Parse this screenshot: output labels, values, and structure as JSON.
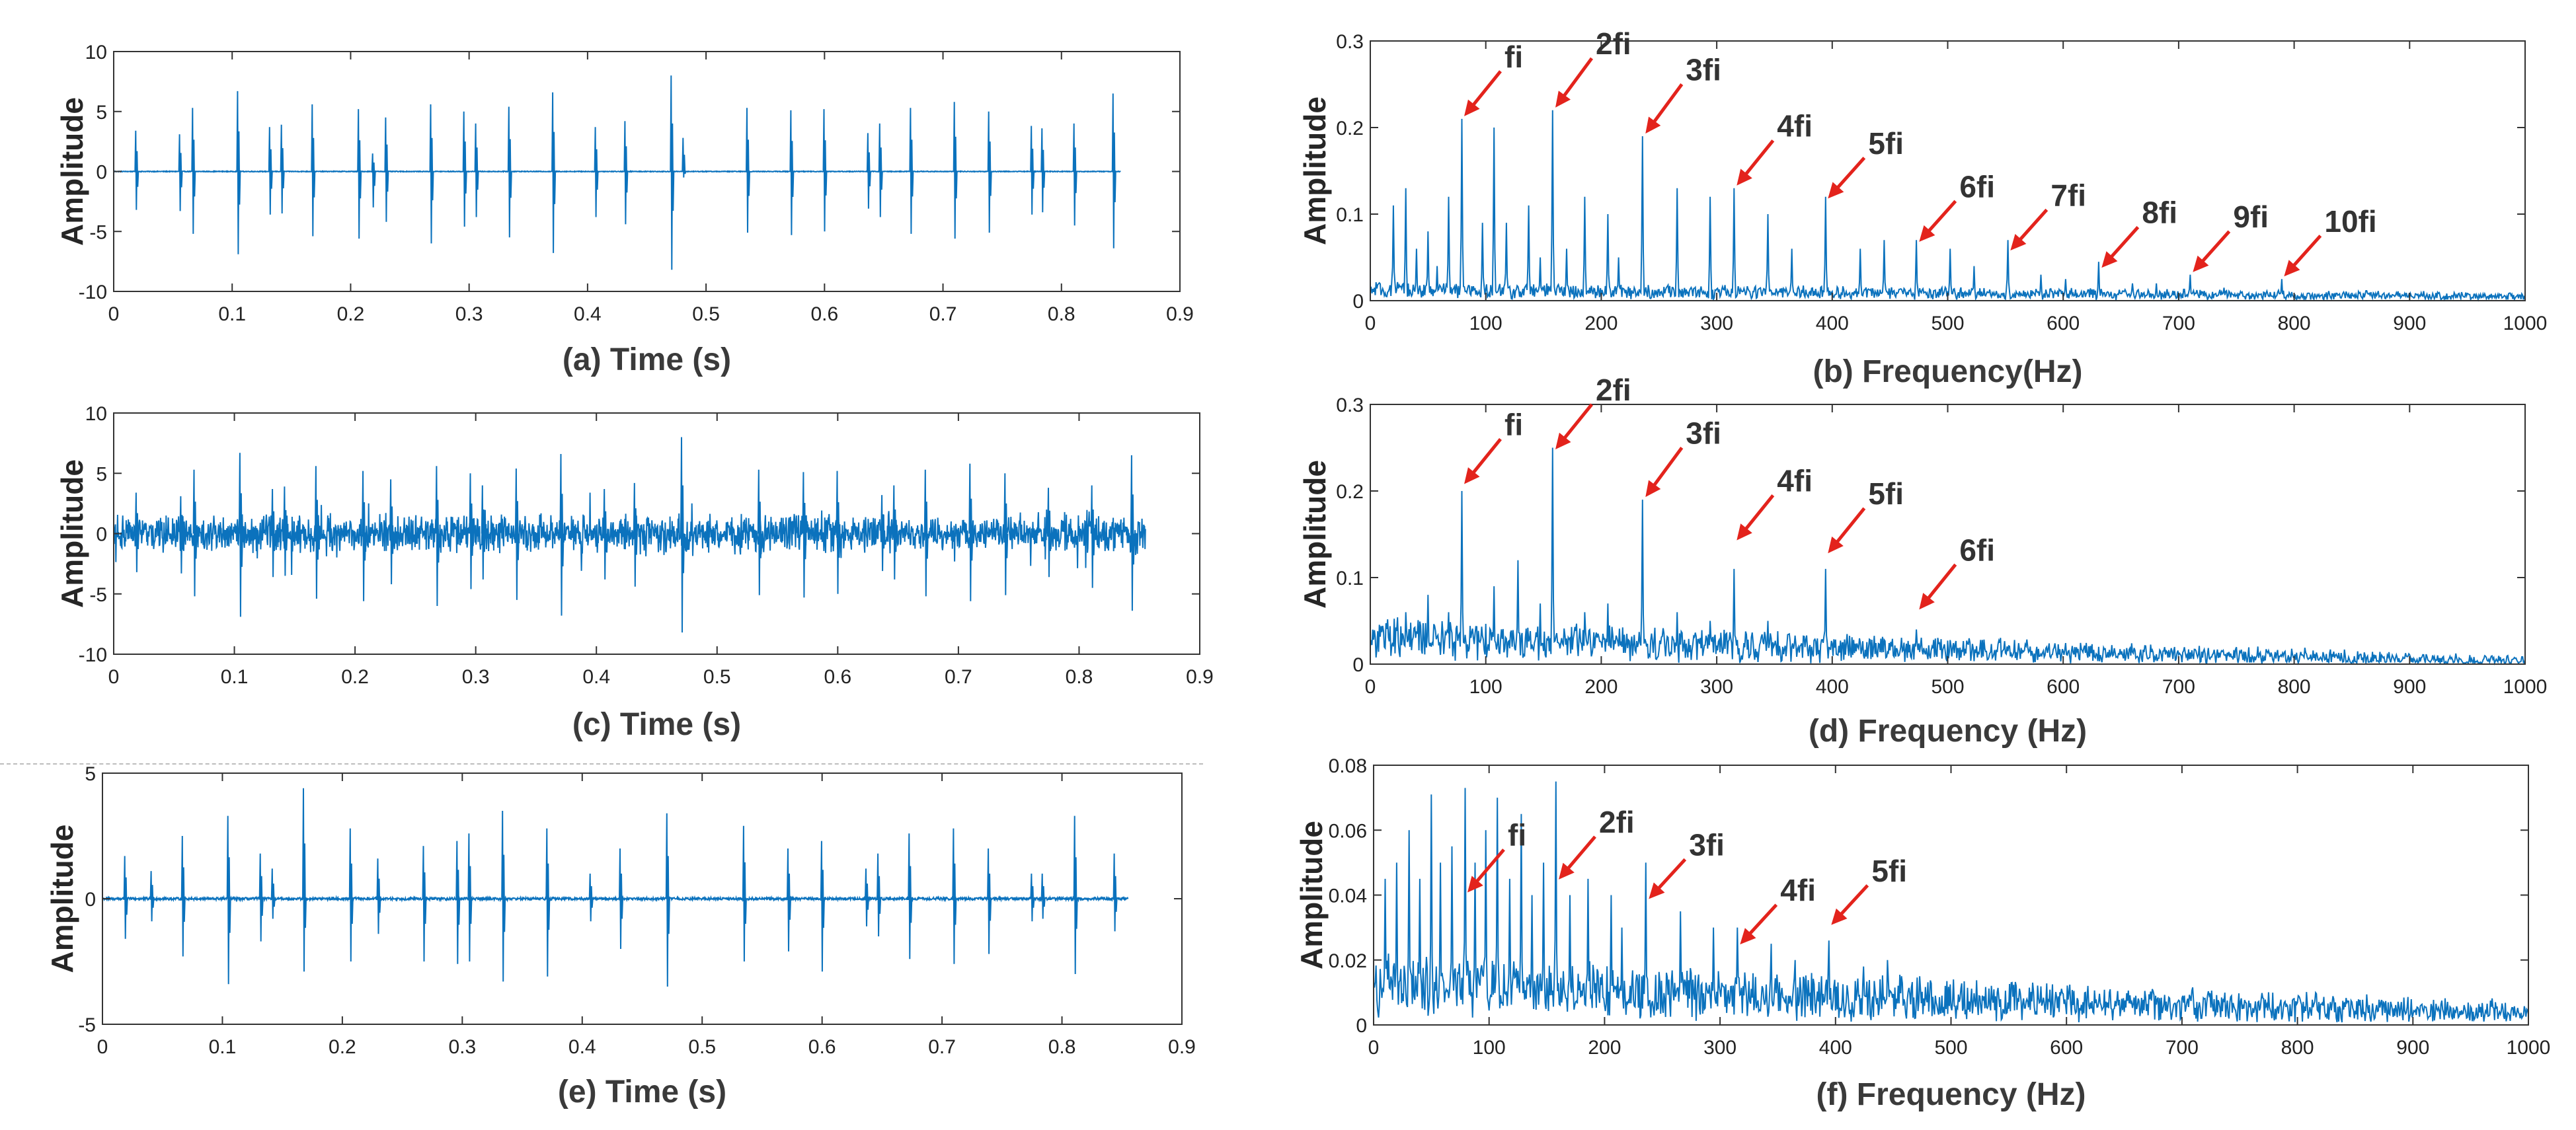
{
  "chart_data": [
    {
      "id": "a",
      "type": "line",
      "kind": "time",
      "xlabel": "(a) Time (s)",
      "ylabel": "Amplitude",
      "xlim": [
        0,
        0.9
      ],
      "ylim": [
        -10,
        10
      ],
      "xticks": [
        "0",
        "0.1",
        "0.2",
        "0.3",
        "0.4",
        "0.5",
        "0.6",
        "0.7",
        "0.8",
        "0.9"
      ],
      "yticks": [
        "10",
        "5",
        "0",
        "-5",
        "-10"
      ],
      "ytick_values": [
        10,
        5,
        0,
        -5,
        -10
      ],
      "signal_end": 0.85,
      "noise": 0.03,
      "impulses": [
        {
          "t": 0.018,
          "up": 3.4,
          "down": -3.2
        },
        {
          "t": 0.055,
          "up": 3.1,
          "down": -3.3
        },
        {
          "t": 0.066,
          "up": 5.3,
          "down": -5.2
        },
        {
          "t": 0.104,
          "up": 6.7,
          "down": -6.9
        },
        {
          "t": 0.131,
          "up": 3.7,
          "down": -3.6
        },
        {
          "t": 0.141,
          "up": 3.9,
          "down": -3.5
        },
        {
          "t": 0.167,
          "up": 5.6,
          "down": -5.4
        },
        {
          "t": 0.206,
          "up": 5.2,
          "down": -5.6
        },
        {
          "t": 0.218,
          "up": 1.5,
          "down": -3.0
        },
        {
          "t": 0.229,
          "up": 4.5,
          "down": -4.2
        },
        {
          "t": 0.267,
          "up": 5.6,
          "down": -6.0
        },
        {
          "t": 0.295,
          "up": 5.0,
          "down": -4.6
        },
        {
          "t": 0.305,
          "up": 4.0,
          "down": -3.8
        },
        {
          "t": 0.333,
          "up": 5.4,
          "down": -5.5
        },
        {
          "t": 0.37,
          "up": 6.6,
          "down": -6.8
        },
        {
          "t": 0.406,
          "up": 3.7,
          "down": -3.8
        },
        {
          "t": 0.431,
          "up": 4.2,
          "down": -4.4
        },
        {
          "t": 0.47,
          "up": 8.0,
          "down": -8.2
        },
        {
          "t": 0.48,
          "up": 2.8,
          "down": -0.5
        },
        {
          "t": 0.534,
          "up": 5.3,
          "down": -5.1
        },
        {
          "t": 0.571,
          "up": 5.1,
          "down": -5.3
        },
        {
          "t": 0.599,
          "up": 5.2,
          "down": -5.0
        },
        {
          "t": 0.636,
          "up": 3.2,
          "down": -3.1
        },
        {
          "t": 0.646,
          "up": 4.0,
          "down": -3.8
        },
        {
          "t": 0.672,
          "up": 5.3,
          "down": -5.2
        },
        {
          "t": 0.709,
          "up": 5.8,
          "down": -5.6
        },
        {
          "t": 0.738,
          "up": 5.0,
          "down": -5.1
        },
        {
          "t": 0.774,
          "up": 3.8,
          "down": -3.6
        },
        {
          "t": 0.783,
          "up": 3.6,
          "down": -3.4
        },
        {
          "t": 0.81,
          "up": 4.0,
          "down": -4.5
        },
        {
          "t": 0.843,
          "up": 6.5,
          "down": -6.4
        }
      ]
    },
    {
      "id": "c",
      "type": "line",
      "kind": "time",
      "xlabel": "(c) Time (s)",
      "ylabel": "Amplitude",
      "xlim": [
        0,
        0.9
      ],
      "ylim": [
        -10,
        10
      ],
      "xticks": [
        "0",
        "0.1",
        "0.2",
        "0.3",
        "0.4",
        "0.5",
        "0.6",
        "0.7",
        "0.8",
        "0.9"
      ],
      "yticks": [
        "10",
        "5",
        "0",
        "-5",
        "-10"
      ],
      "ytick_values": [
        10,
        5,
        0,
        -5,
        -10
      ],
      "signal_end": 0.855,
      "noise": 1.1,
      "impulses": [
        {
          "t": 0.018,
          "up": 3.4,
          "down": -3.2
        },
        {
          "t": 0.055,
          "up": 3.1,
          "down": -3.3
        },
        {
          "t": 0.066,
          "up": 5.3,
          "down": -5.2
        },
        {
          "t": 0.104,
          "up": 6.7,
          "down": -6.9
        },
        {
          "t": 0.131,
          "up": 3.7,
          "down": -3.6
        },
        {
          "t": 0.141,
          "up": 3.9,
          "down": -3.5
        },
        {
          "t": 0.167,
          "up": 5.6,
          "down": -5.4
        },
        {
          "t": 0.206,
          "up": 5.2,
          "down": -5.6
        },
        {
          "t": 0.229,
          "up": 4.5,
          "down": -4.2
        },
        {
          "t": 0.267,
          "up": 5.6,
          "down": -6.0
        },
        {
          "t": 0.295,
          "up": 5.0,
          "down": -4.6
        },
        {
          "t": 0.305,
          "up": 4.0,
          "down": -3.8
        },
        {
          "t": 0.333,
          "up": 5.4,
          "down": -5.5
        },
        {
          "t": 0.37,
          "up": 6.6,
          "down": -6.8
        },
        {
          "t": 0.406,
          "up": 3.7,
          "down": -3.8
        },
        {
          "t": 0.431,
          "up": 4.2,
          "down": -4.4
        },
        {
          "t": 0.47,
          "up": 8.0,
          "down": -8.2
        },
        {
          "t": 0.534,
          "up": 5.3,
          "down": -5.1
        },
        {
          "t": 0.571,
          "up": 5.1,
          "down": -5.3
        },
        {
          "t": 0.599,
          "up": 5.2,
          "down": -5.0
        },
        {
          "t": 0.636,
          "up": 3.2,
          "down": -3.1
        },
        {
          "t": 0.646,
          "up": 4.0,
          "down": -3.8
        },
        {
          "t": 0.672,
          "up": 5.3,
          "down": -5.2
        },
        {
          "t": 0.709,
          "up": 5.8,
          "down": -5.6
        },
        {
          "t": 0.738,
          "up": 5.0,
          "down": -5.1
        },
        {
          "t": 0.774,
          "up": 3.8,
          "down": -3.6
        },
        {
          "t": 0.81,
          "up": 4.0,
          "down": -4.5
        },
        {
          "t": 0.843,
          "up": 6.5,
          "down": -6.4
        }
      ]
    },
    {
      "id": "e",
      "type": "line",
      "kind": "time",
      "xlabel": "(e) Time (s)",
      "ylabel": "Amplitude",
      "xlim": [
        0,
        0.9
      ],
      "ylim": [
        -5,
        5
      ],
      "xticks": [
        "0",
        "0.1",
        "0.2",
        "0.3",
        "0.4",
        "0.5",
        "0.6",
        "0.7",
        "0.8",
        "0.9"
      ],
      "yticks": [
        "5",
        "0",
        "-5"
      ],
      "ytick_values": [
        5,
        0,
        -5
      ],
      "signal_end": 0.855,
      "noise": 0.05,
      "impulses": [
        {
          "t": 0.018,
          "up": 1.7,
          "down": -1.6
        },
        {
          "t": 0.04,
          "up": 1.1,
          "down": -0.9
        },
        {
          "t": 0.066,
          "up": 2.5,
          "down": -2.3
        },
        {
          "t": 0.104,
          "up": 3.3,
          "down": -3.4
        },
        {
          "t": 0.131,
          "up": 1.8,
          "down": -1.7
        },
        {
          "t": 0.141,
          "up": 1.2,
          "down": -0.8
        },
        {
          "t": 0.167,
          "up": 4.4,
          "down": -2.9
        },
        {
          "t": 0.206,
          "up": 2.8,
          "down": -2.5
        },
        {
          "t": 0.229,
          "up": 1.6,
          "down": -1.4
        },
        {
          "t": 0.267,
          "up": 2.1,
          "down": -2.5
        },
        {
          "t": 0.295,
          "up": 2.3,
          "down": -2.6
        },
        {
          "t": 0.305,
          "up": 2.6,
          "down": -2.5
        },
        {
          "t": 0.333,
          "up": 3.5,
          "down": -3.3
        },
        {
          "t": 0.37,
          "up": 2.8,
          "down": -3.1
        },
        {
          "t": 0.406,
          "up": 1.0,
          "down": -0.9
        },
        {
          "t": 0.431,
          "up": 2.0,
          "down": -2.0
        },
        {
          "t": 0.47,
          "up": 3.4,
          "down": -3.5
        },
        {
          "t": 0.534,
          "up": 2.9,
          "down": -2.5
        },
        {
          "t": 0.571,
          "up": 2.0,
          "down": -2.1
        },
        {
          "t": 0.599,
          "up": 2.3,
          "down": -2.9
        },
        {
          "t": 0.636,
          "up": 1.2,
          "down": -1.1
        },
        {
          "t": 0.646,
          "up": 1.8,
          "down": -1.5
        },
        {
          "t": 0.672,
          "up": 2.6,
          "down": -2.4
        },
        {
          "t": 0.709,
          "up": 2.8,
          "down": -2.6
        },
        {
          "t": 0.738,
          "up": 2.0,
          "down": -2.2
        },
        {
          "t": 0.774,
          "up": 1.0,
          "down": -0.9
        },
        {
          "t": 0.783,
          "up": 1.0,
          "down": -0.8
        },
        {
          "t": 0.81,
          "up": 3.3,
          "down": -3.0
        },
        {
          "t": 0.843,
          "up": 1.8,
          "down": -1.3
        }
      ]
    },
    {
      "id": "b",
      "type": "line",
      "kind": "freq",
      "xlabel": "(b) Frequency(Hz)",
      "ylabel": "Amplitude",
      "xlim": [
        0,
        1000
      ],
      "ylim": [
        0,
        0.3
      ],
      "xticks": [
        "0",
        "100",
        "200",
        "300",
        "400",
        "500",
        "600",
        "700",
        "800",
        "900",
        "1000"
      ],
      "yticks": [
        "0.3",
        "0.2",
        "0.1",
        "0"
      ],
      "ytick_values": [
        0.3,
        0.2,
        0.1,
        0
      ],
      "baseline": 0.012,
      "baseline_decay": 0.6,
      "noise": 0.004,
      "peaks": [
        {
          "f": 20,
          "a": 0.11
        },
        {
          "f": 31,
          "a": 0.13
        },
        {
          "f": 40,
          "a": 0.06
        },
        {
          "f": 50,
          "a": 0.08
        },
        {
          "f": 58,
          "a": 0.04
        },
        {
          "f": 68,
          "a": 0.12
        },
        {
          "f": 79,
          "a": 0.21
        },
        {
          "f": 97,
          "a": 0.09
        },
        {
          "f": 107,
          "a": 0.2
        },
        {
          "f": 118,
          "a": 0.09
        },
        {
          "f": 137,
          "a": 0.11
        },
        {
          "f": 147,
          "a": 0.05
        },
        {
          "f": 158,
          "a": 0.22
        },
        {
          "f": 170,
          "a": 0.06
        },
        {
          "f": 186,
          "a": 0.12
        },
        {
          "f": 206,
          "a": 0.1
        },
        {
          "f": 215,
          "a": 0.05
        },
        {
          "f": 236,
          "a": 0.19
        },
        {
          "f": 266,
          "a": 0.13
        },
        {
          "f": 294,
          "a": 0.12
        },
        {
          "f": 315,
          "a": 0.13
        },
        {
          "f": 344,
          "a": 0.1
        },
        {
          "f": 365,
          "a": 0.06
        },
        {
          "f": 394,
          "a": 0.12
        },
        {
          "f": 424,
          "a": 0.06
        },
        {
          "f": 445,
          "a": 0.07
        },
        {
          "f": 473,
          "a": 0.07
        },
        {
          "f": 502,
          "a": 0.06
        },
        {
          "f": 523,
          "a": 0.04
        },
        {
          "f": 552,
          "a": 0.07
        },
        {
          "f": 581,
          "a": 0.03
        },
        {
          "f": 602,
          "a": 0.025
        },
        {
          "f": 631,
          "a": 0.045
        },
        {
          "f": 660,
          "a": 0.02
        },
        {
          "f": 681,
          "a": 0.02
        },
        {
          "f": 710,
          "a": 0.03
        },
        {
          "f": 739,
          "a": 0.015
        },
        {
          "f": 789,
          "a": 0.025
        }
      ],
      "annotations": [
        {
          "label": "fi",
          "f": 79,
          "a": 0.21,
          "dy": 0.055
        },
        {
          "label": "2fi",
          "f": 158,
          "a": 0.22,
          "dy": 0.06
        },
        {
          "label": "3fi",
          "f": 236,
          "a": 0.19,
          "dy": 0.06
        },
        {
          "label": "4fi",
          "f": 315,
          "a": 0.13,
          "dy": 0.055
        },
        {
          "label": "5fi",
          "f": 394,
          "a": 0.115,
          "dy": 0.05
        },
        {
          "label": "6fi",
          "f": 473,
          "a": 0.065,
          "dy": 0.05
        },
        {
          "label": "7fi",
          "f": 552,
          "a": 0.055,
          "dy": 0.05
        },
        {
          "label": "8fi",
          "f": 631,
          "a": 0.035,
          "dy": 0.05
        },
        {
          "label": "9fi",
          "f": 710,
          "a": 0.03,
          "dy": 0.05
        },
        {
          "label": "10fi",
          "f": 789,
          "a": 0.025,
          "dy": 0.05
        }
      ]
    },
    {
      "id": "d",
      "type": "line",
      "kind": "freq",
      "xlabel": "(d) Frequency (Hz)",
      "ylabel": "Amplitude",
      "xlim": [
        0,
        1000
      ],
      "ylim": [
        0,
        0.3
      ],
      "xticks": [
        "0",
        "100",
        "200",
        "300",
        "400",
        "500",
        "600",
        "700",
        "800",
        "900",
        "1000"
      ],
      "yticks": [
        "0.3",
        "0.2",
        "0.1",
        "0"
      ],
      "ytick_values": [
        0.3,
        0.2,
        0.1,
        0
      ],
      "baseline": 0.03,
      "baseline_decay": 0.9,
      "noise": 0.012,
      "peaks": [
        {
          "f": 31,
          "a": 0.06
        },
        {
          "f": 50,
          "a": 0.08
        },
        {
          "f": 68,
          "a": 0.06
        },
        {
          "f": 79,
          "a": 0.2
        },
        {
          "f": 107,
          "a": 0.09
        },
        {
          "f": 128,
          "a": 0.12
        },
        {
          "f": 147,
          "a": 0.07
        },
        {
          "f": 158,
          "a": 0.25
        },
        {
          "f": 186,
          "a": 0.06
        },
        {
          "f": 206,
          "a": 0.07
        },
        {
          "f": 236,
          "a": 0.19
        },
        {
          "f": 266,
          "a": 0.06
        },
        {
          "f": 294,
          "a": 0.05
        },
        {
          "f": 315,
          "a": 0.11
        },
        {
          "f": 344,
          "a": 0.05
        },
        {
          "f": 394,
          "a": 0.11
        },
        {
          "f": 473,
          "a": 0.04
        },
        {
          "f": 552,
          "a": 0.015
        },
        {
          "f": 631,
          "a": 0.01
        },
        {
          "f": 710,
          "a": 0.01
        }
      ],
      "annotations": [
        {
          "label": "fi",
          "f": 79,
          "a": 0.205,
          "dy": 0.055
        },
        {
          "label": "2fi",
          "f": 158,
          "a": 0.245,
          "dy": 0.055
        },
        {
          "label": "3fi",
          "f": 236,
          "a": 0.19,
          "dy": 0.06
        },
        {
          "label": "4fi",
          "f": 315,
          "a": 0.14,
          "dy": 0.055
        },
        {
          "label": "5fi",
          "f": 394,
          "a": 0.125,
          "dy": 0.055
        },
        {
          "label": "6fi",
          "f": 473,
          "a": 0.06,
          "dy": 0.055
        }
      ]
    },
    {
      "id": "f",
      "type": "line",
      "kind": "freq",
      "xlabel": "(f) Frequency (Hz)",
      "ylabel": "Amplitude",
      "xlim": [
        0,
        1000
      ],
      "ylim": [
        0,
        0.08
      ],
      "xticks": [
        "0",
        "100",
        "200",
        "300",
        "400",
        "500",
        "600",
        "700",
        "800",
        "900",
        "1000"
      ],
      "yticks": [
        "0.08",
        "0.06",
        "0.04",
        "0.02",
        "0"
      ],
      "ytick_values": [
        0.08,
        0.06,
        0.04,
        0.02,
        0
      ],
      "baseline": 0.012,
      "baseline_decay": 0.7,
      "noise": 0.004,
      "peaks": [
        {
          "f": 10,
          "a": 0.045
        },
        {
          "f": 20,
          "a": 0.05
        },
        {
          "f": 31,
          "a": 0.06
        },
        {
          "f": 40,
          "a": 0.045
        },
        {
          "f": 50,
          "a": 0.071
        },
        {
          "f": 58,
          "a": 0.05
        },
        {
          "f": 68,
          "a": 0.055
        },
        {
          "f": 79,
          "a": 0.073
        },
        {
          "f": 88,
          "a": 0.05
        },
        {
          "f": 97,
          "a": 0.06
        },
        {
          "f": 107,
          "a": 0.07
        },
        {
          "f": 118,
          "a": 0.045
        },
        {
          "f": 128,
          "a": 0.065
        },
        {
          "f": 137,
          "a": 0.04
        },
        {
          "f": 147,
          "a": 0.05
        },
        {
          "f": 158,
          "a": 0.075
        },
        {
          "f": 170,
          "a": 0.04
        },
        {
          "f": 186,
          "a": 0.045
        },
        {
          "f": 206,
          "a": 0.04
        },
        {
          "f": 215,
          "a": 0.03
        },
        {
          "f": 236,
          "a": 0.05
        },
        {
          "f": 266,
          "a": 0.035
        },
        {
          "f": 294,
          "a": 0.03
        },
        {
          "f": 315,
          "a": 0.03
        },
        {
          "f": 344,
          "a": 0.025
        },
        {
          "f": 365,
          "a": 0.02
        },
        {
          "f": 394,
          "a": 0.026
        },
        {
          "f": 424,
          "a": 0.018
        },
        {
          "f": 445,
          "a": 0.02
        },
        {
          "f": 473,
          "a": 0.015
        },
        {
          "f": 502,
          "a": 0.014
        },
        {
          "f": 552,
          "a": 0.012
        },
        {
          "f": 602,
          "a": 0.01
        },
        {
          "f": 660,
          "a": 0.009
        }
      ],
      "annotations": [
        {
          "label": "fi",
          "f": 79,
          "a": 0.04,
          "dy": 0.014
        },
        {
          "label": "2fi",
          "f": 158,
          "a": 0.044,
          "dy": 0.014
        },
        {
          "label": "3fi",
          "f": 236,
          "a": 0.038,
          "dy": 0.013
        },
        {
          "label": "4fi",
          "f": 315,
          "a": 0.024,
          "dy": 0.013
        },
        {
          "label": "5fi",
          "f": 394,
          "a": 0.03,
          "dy": 0.013
        }
      ]
    }
  ]
}
